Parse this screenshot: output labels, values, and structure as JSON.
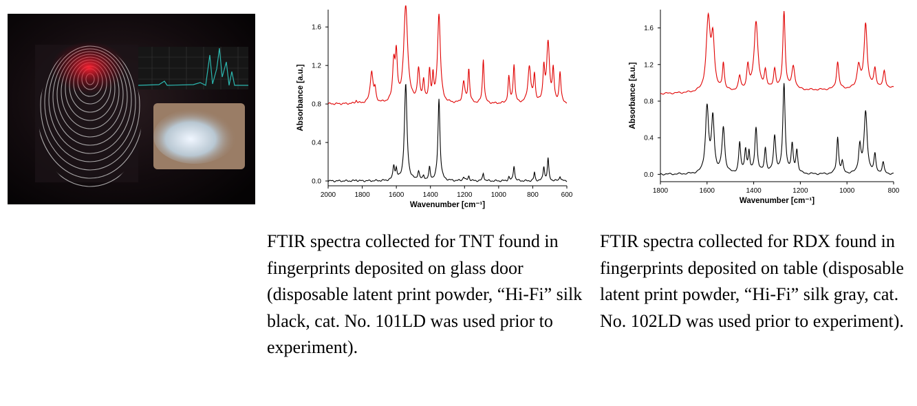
{
  "hero_image": {
    "description_icon": "fingerprint-spectrum-collage-icon"
  },
  "chart_data": [
    {
      "type": "line",
      "xlabel": "Wavenumber [cm⁻¹]",
      "ylabel": "Absorbance [a.u.]",
      "xlim": [
        2000,
        600
      ],
      "ylim": [
        -0.05,
        1.78
      ],
      "x_ticks": [
        "2000",
        "1800",
        "1600",
        "1400",
        "1200",
        "1000",
        "800",
        "600"
      ],
      "y_ticks": [
        "0.0",
        "0.4",
        "0.8",
        "1.2",
        "1.6"
      ],
      "series": [
        {
          "color": "#e00000",
          "baseline": 0.8,
          "peaks": [
            [
              1835,
              0.03,
              6
            ],
            [
              1745,
              0.33,
              10
            ],
            [
              1725,
              0.12,
              6
            ],
            [
              1615,
              0.4,
              8
            ],
            [
              1600,
              0.45,
              7
            ],
            [
              1545,
              1.0,
              14
            ],
            [
              1470,
              0.33,
              8
            ],
            [
              1440,
              0.22,
              6
            ],
            [
              1405,
              0.32,
              6
            ],
            [
              1385,
              0.25,
              5
            ],
            [
              1350,
              0.92,
              10
            ],
            [
              1205,
              0.22,
              8
            ],
            [
              1175,
              0.35,
              6
            ],
            [
              1090,
              0.46,
              6
            ],
            [
              940,
              0.27,
              6
            ],
            [
              910,
              0.4,
              6
            ],
            [
              820,
              0.38,
              10
            ],
            [
              790,
              0.28,
              6
            ],
            [
              735,
              0.35,
              6
            ],
            [
              710,
              0.62,
              10
            ],
            [
              680,
              0.33,
              6
            ],
            [
              640,
              0.32,
              6
            ]
          ]
        },
        {
          "color": "#000000",
          "baseline": 0.0,
          "peaks": [
            [
              1835,
              0.01,
              6
            ],
            [
              1615,
              0.15,
              6
            ],
            [
              1600,
              0.1,
              5
            ],
            [
              1545,
              1.0,
              9
            ],
            [
              1470,
              0.09,
              6
            ],
            [
              1440,
              0.05,
              5
            ],
            [
              1405,
              0.13,
              5
            ],
            [
              1350,
              0.85,
              7
            ],
            [
              1205,
              0.04,
              6
            ],
            [
              1175,
              0.05,
              5
            ],
            [
              1090,
              0.08,
              5
            ],
            [
              940,
              0.04,
              5
            ],
            [
              910,
              0.16,
              5
            ],
            [
              790,
              0.09,
              4
            ],
            [
              735,
              0.15,
              5
            ],
            [
              710,
              0.23,
              5
            ],
            [
              640,
              0.05,
              5
            ]
          ]
        }
      ]
    },
    {
      "type": "line",
      "xlabel": "Wavenumber [cm⁻¹]",
      "ylabel": "Absorbance [a.u.]",
      "xlim": [
        1800,
        800
      ],
      "ylim": [
        -0.08,
        1.8
      ],
      "x_ticks": [
        "1800",
        "1600",
        "1400",
        "1200",
        "1000",
        "800"
      ],
      "y_ticks": [
        "0.0",
        "0.4",
        "0.8",
        "1.2",
        "1.6"
      ],
      "series": [
        {
          "color": "#e00000",
          "baseline": 0.88,
          "slope": 0.0002,
          "peaks": [
            [
              1595,
              0.78,
              10
            ],
            [
              1575,
              0.55,
              8
            ],
            [
              1530,
              0.3,
              5
            ],
            [
              1460,
              0.15,
              6
            ],
            [
              1425,
              0.25,
              6
            ],
            [
              1390,
              0.75,
              10
            ],
            [
              1350,
              0.2,
              6
            ],
            [
              1310,
              0.22,
              6
            ],
            [
              1270,
              0.85,
              6
            ],
            [
              1230,
              0.25,
              8
            ],
            [
              1040,
              0.3,
              6
            ],
            [
              950,
              0.25,
              8
            ],
            [
              920,
              0.7,
              8
            ],
            [
              880,
              0.2,
              6
            ],
            [
              840,
              0.18,
              6
            ]
          ]
        },
        {
          "color": "#000000",
          "baseline": 0.0,
          "peaks": [
            [
              1600,
              0.72,
              8
            ],
            [
              1575,
              0.6,
              7
            ],
            [
              1530,
              0.5,
              7
            ],
            [
              1460,
              0.33,
              5
            ],
            [
              1435,
              0.26,
              5
            ],
            [
              1420,
              0.22,
              4
            ],
            [
              1390,
              0.5,
              6
            ],
            [
              1350,
              0.27,
              5
            ],
            [
              1310,
              0.4,
              6
            ],
            [
              1270,
              0.97,
              6
            ],
            [
              1235,
              0.3,
              5
            ],
            [
              1215,
              0.25,
              5
            ],
            [
              1040,
              0.4,
              5
            ],
            [
              1020,
              0.12,
              5
            ],
            [
              945,
              0.3,
              6
            ],
            [
              920,
              0.67,
              8
            ],
            [
              880,
              0.2,
              5
            ],
            [
              845,
              0.12,
              5
            ]
          ]
        }
      ]
    }
  ],
  "captions": {
    "left": "FTIR spectra collected for TNT found in fingerprints deposited on glass door (disposable latent print powder, “Hi-Fi” silk black, cat. No. 101LD was used prior to experiment).",
    "right": "FTIR spectra collected for RDX found in fingerprints deposited on table (disposable latent print powder, “Hi-Fi” silk gray, cat. No. 102LD was used prior to experiment)."
  }
}
